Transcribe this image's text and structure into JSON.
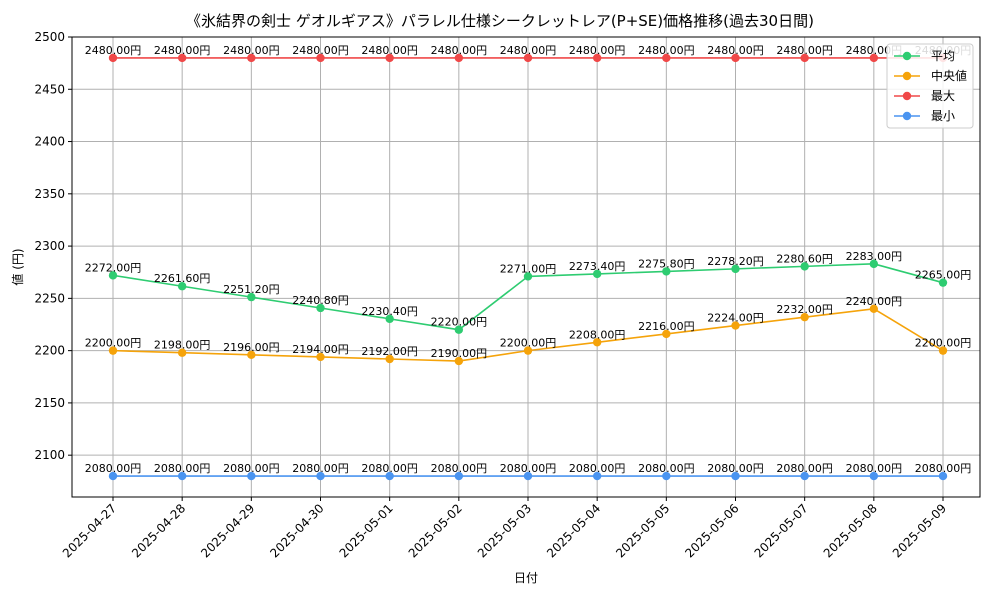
{
  "chart_data": {
    "type": "line",
    "title": "《氷結界の剣士 ゲオルギアス》パラレル仕様シークレットレア(P+SE)価格推移(過去30日間)",
    "xlabel": "日付",
    "ylabel": "値 (円)",
    "x": [
      "2025-04-27",
      "2025-04-28",
      "2025-04-29",
      "2025-04-30",
      "2025-05-01",
      "2025-05-02",
      "2025-05-03",
      "2025-05-04",
      "2025-05-05",
      "2025-05-06",
      "2025-05-07",
      "2025-05-08",
      "2025-05-09"
    ],
    "ylim": [
      2060,
      2500
    ],
    "yticks": [
      2100,
      2150,
      2200,
      2250,
      2300,
      2350,
      2400,
      2450,
      2500
    ],
    "grid": true,
    "legend_position": "top-right",
    "label_suffix": "円",
    "series": [
      {
        "name": "平均",
        "color": "#2ecc71",
        "values": [
          2272.0,
          2261.6,
          2251.2,
          2240.8,
          2230.4,
          2220.0,
          2271.0,
          2273.4,
          2275.8,
          2278.2,
          2280.6,
          2283.0,
          2265.0
        ]
      },
      {
        "name": "中央値",
        "color": "#f5a30a",
        "values": [
          2200.0,
          2198.0,
          2196.0,
          2194.0,
          2192.0,
          2190.0,
          2200.0,
          2208.0,
          2216.0,
          2224.0,
          2232.0,
          2240.0,
          2200.0
        ]
      },
      {
        "name": "最大",
        "color": "#f04848",
        "values": [
          2480.0,
          2480.0,
          2480.0,
          2480.0,
          2480.0,
          2480.0,
          2480.0,
          2480.0,
          2480.0,
          2480.0,
          2480.0,
          2480.0,
          2480.0
        ]
      },
      {
        "name": "最小",
        "color": "#4a94f0",
        "values": [
          2080.0,
          2080.0,
          2080.0,
          2080.0,
          2080.0,
          2080.0,
          2080.0,
          2080.0,
          2080.0,
          2080.0,
          2080.0,
          2080.0,
          2080.0
        ]
      }
    ]
  }
}
